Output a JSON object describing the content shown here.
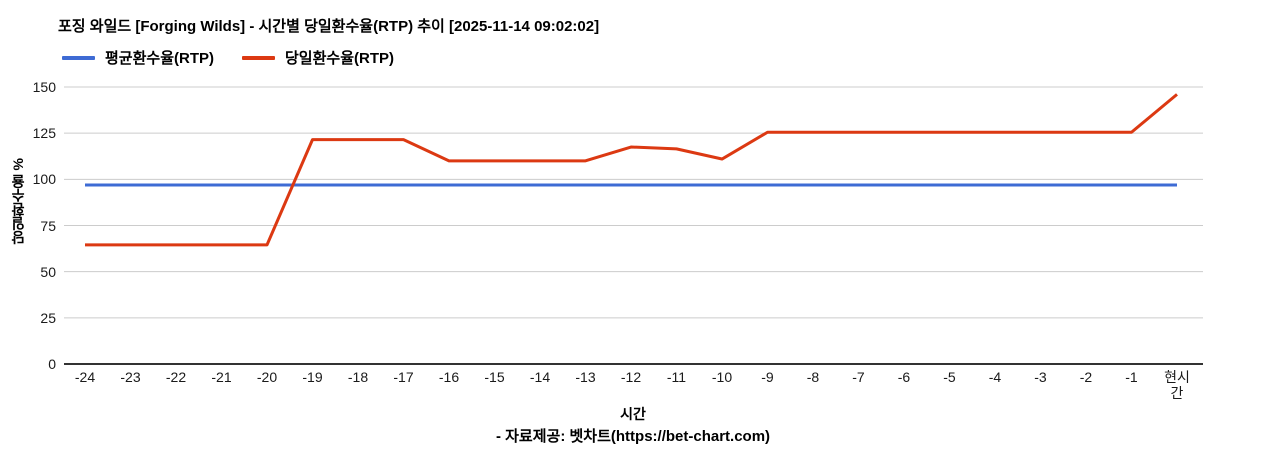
{
  "chart_data": {
    "type": "line",
    "title": "포징 와일드 [Forging Wilds] - 시간별 당일환수율(RTP) 추이 [2025-11-14 09:02:02]",
    "xlabel": "시간",
    "ylabel": "당일환수율 %",
    "categories": [
      "-24",
      "-23",
      "-22",
      "-21",
      "-20",
      "-19",
      "-18",
      "-17",
      "-16",
      "-15",
      "-14",
      "-13",
      "-12",
      "-11",
      "-10",
      "-9",
      "-8",
      "-7",
      "-6",
      "-5",
      "-4",
      "-3",
      "-2",
      "-1",
      "현시간"
    ],
    "yticks": [
      0,
      25,
      50,
      75,
      100,
      125,
      150
    ],
    "ylim": [
      0,
      150
    ],
    "grid": true,
    "legend_position": "top-left",
    "series": [
      {
        "name": "평균환수율(RTP)",
        "color": "#3E6BD4",
        "values": [
          96.9,
          96.9,
          96.9,
          96.9,
          96.9,
          96.9,
          96.9,
          96.9,
          96.9,
          96.9,
          96.9,
          96.9,
          96.9,
          96.9,
          96.9,
          96.9,
          96.9,
          96.9,
          96.9,
          96.9,
          96.9,
          96.9,
          96.9,
          96.9,
          96.9
        ]
      },
      {
        "name": "당일환수율(RTP)",
        "color": "#DC3912",
        "values": [
          64.5,
          64.5,
          64.5,
          64.5,
          64.5,
          121.5,
          121.5,
          121.5,
          110,
          110,
          110,
          110,
          117.5,
          116.5,
          111,
          125.5,
          125.5,
          125.5,
          125.5,
          125.5,
          125.5,
          125.5,
          125.5,
          125.5,
          146
        ]
      }
    ]
  },
  "footer": "- 자료제공: 벳차트(https://bet-chart.com)"
}
